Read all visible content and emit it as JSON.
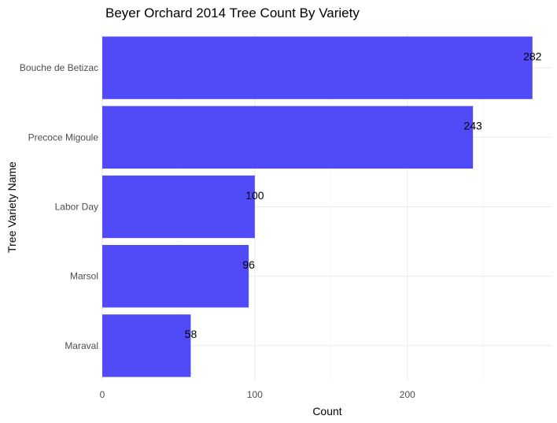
{
  "chart_data": {
    "type": "bar",
    "orientation": "horizontal",
    "title": "Beyer Orchard 2014 Tree Count By Variety",
    "xlabel": "Count",
    "ylabel": "Tree Variety Name",
    "categories": [
      "Bouche de Betizac",
      "Precoce Migoule",
      "Labor Day",
      "Marsol",
      "Maraval"
    ],
    "values": [
      282,
      243,
      100,
      96,
      58
    ],
    "xlim": [
      0,
      295
    ],
    "xticks": [
      0,
      100,
      200
    ],
    "grid": true,
    "legend": "none",
    "bar_color": "#4b45f7"
  }
}
